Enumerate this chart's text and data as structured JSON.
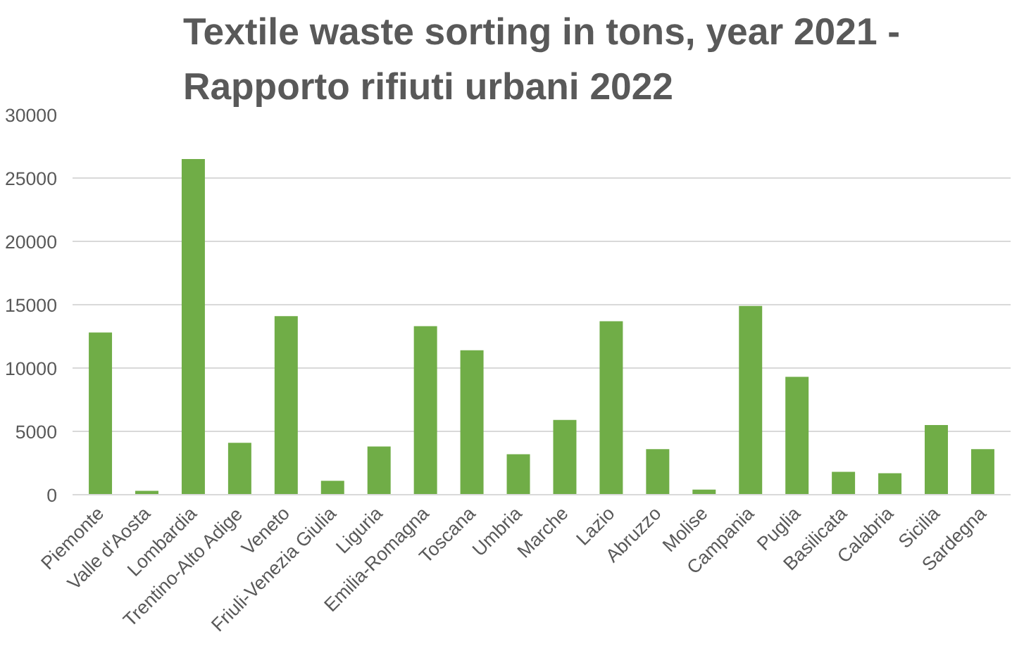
{
  "chart_data": {
    "type": "bar",
    "title": "Textile waste sorting in tons, year 2021 -\nRapporto rifiuti urbani 2022",
    "categories": [
      "Piemonte",
      "Valle d'Aosta",
      "Lombardia",
      "Trentino-Alto Adige",
      "Veneto",
      "Friuli-Venezia Giulia",
      "Liguria",
      "Emilia-Romagna",
      "Toscana",
      "Umbria",
      "Marche",
      "Lazio",
      "Abruzzo",
      "Molise",
      "Campania",
      "Puglia",
      "Basilicata",
      "Calabria",
      "Sicilia",
      "Sardegna"
    ],
    "values": [
      12800,
      300,
      26500,
      4100,
      14100,
      1100,
      3800,
      13300,
      11400,
      3200,
      5900,
      13700,
      3600,
      400,
      14900,
      9300,
      1800,
      1700,
      5500,
      3600
    ],
    "color": "#70ad47",
    "ylim": [
      0,
      30000
    ],
    "yticks": [
      0,
      5000,
      10000,
      15000,
      20000,
      25000,
      30000
    ],
    "grid": "y"
  }
}
